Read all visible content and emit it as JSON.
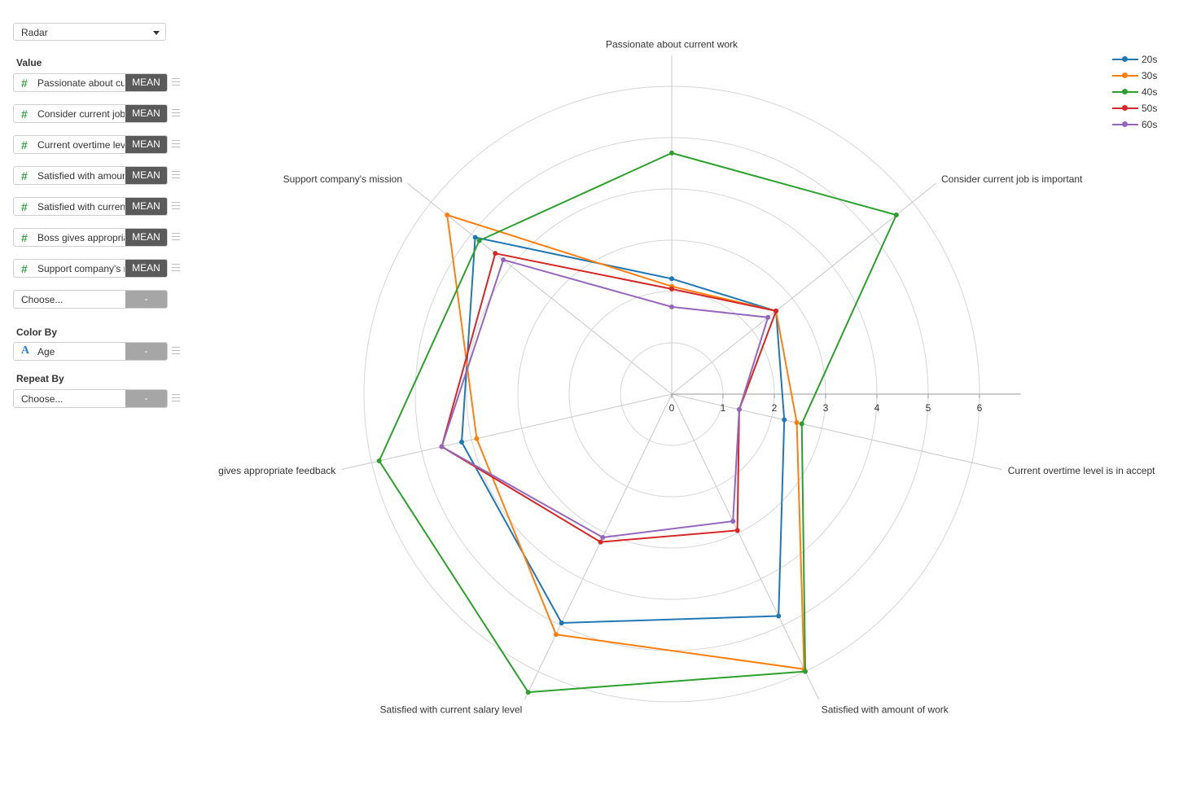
{
  "sidebar": {
    "chart_type": "Radar",
    "value_title": "Value",
    "values": [
      {
        "label": "Passionate about current work",
        "agg": "MEAN"
      },
      {
        "label": "Consider current job is important",
        "agg": "MEAN"
      },
      {
        "label": "Current overtime level is in acceptable",
        "agg": "MEAN"
      },
      {
        "label": "Satisfied with amount of work",
        "agg": "MEAN"
      },
      {
        "label": "Satisfied with current salary level",
        "agg": "MEAN"
      },
      {
        "label": "Boss gives appropriate feedback",
        "agg": "MEAN"
      },
      {
        "label": "Support company's mission",
        "agg": "MEAN"
      }
    ],
    "choose_value": {
      "label": "Choose...",
      "btn": "-"
    },
    "color_title": "Color By",
    "color_by": {
      "label": "Age",
      "btn": "-"
    },
    "repeat_title": "Repeat By",
    "repeat_by": {
      "label": "Choose...",
      "btn": "-"
    }
  },
  "icons": {
    "number": "#",
    "text": "A"
  },
  "chart_data": {
    "type": "radar",
    "axes": [
      "Passionate about current work",
      "Consider current job is important",
      "Current overtime level is in accept",
      "Satisfied with amount of work",
      "Satisfied with current salary level",
      "gives appropriate feedback",
      "Support company's mission"
    ],
    "ticks": [
      0,
      1,
      2,
      3,
      4,
      5,
      6
    ],
    "series": [
      {
        "name": "20s",
        "color": "#1f77b4",
        "values": [
          2.25,
          2.6,
          2.25,
          4.8,
          4.95,
          4.2,
          4.9
        ]
      },
      {
        "name": "30s",
        "color": "#ff7f0e",
        "values": [
          2.1,
          2.6,
          2.5,
          5.95,
          5.2,
          3.9,
          5.6
        ]
      },
      {
        "name": "40s",
        "color": "#2ca02c",
        "values": [
          4.7,
          5.6,
          2.6,
          6.0,
          6.45,
          5.85,
          4.8
        ]
      },
      {
        "name": "50s",
        "color": "#d62728",
        "values": [
          2.05,
          2.6,
          1.35,
          2.95,
          3.2,
          4.6,
          4.4
        ]
      },
      {
        "name": "60s",
        "color": "#9467bd",
        "values": [
          1.7,
          2.4,
          1.35,
          2.75,
          3.1,
          4.6,
          4.2
        ]
      }
    ]
  }
}
